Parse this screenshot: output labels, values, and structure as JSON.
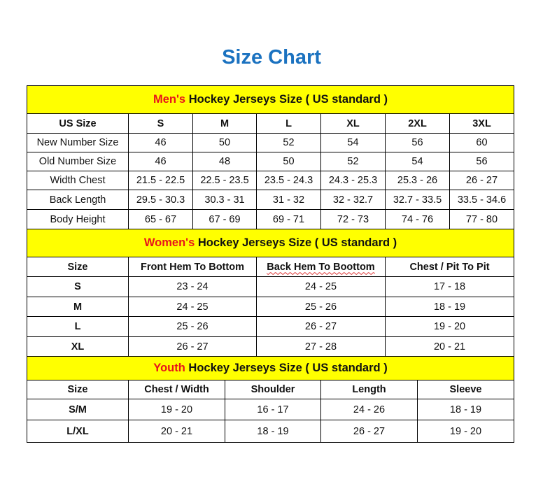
{
  "title": "Size Chart",
  "colors": {
    "title": "#1b72c0",
    "banner_bg": "#ffff00",
    "banner_accent": "#e8141b"
  },
  "mens": {
    "banner_accent": "Men's",
    "banner_rest": " Hockey Jerseys Size ( US standard )",
    "headers": [
      "US Size",
      "S",
      "M",
      "L",
      "XL",
      "2XL",
      "3XL"
    ],
    "rows": [
      [
        "New Number Size",
        "46",
        "50",
        "52",
        "54",
        "56",
        "60"
      ],
      [
        "Old Number Size",
        "46",
        "48",
        "50",
        "52",
        "54",
        "56"
      ],
      [
        "Width Chest",
        "21.5 - 22.5",
        "22.5 - 23.5",
        "23.5 - 24.3",
        "24.3 - 25.3",
        "25.3 - 26",
        "26 - 27"
      ],
      [
        "Back Length",
        "29.5 - 30.3",
        "30.3 - 31",
        "31 - 32",
        "32 - 32.7",
        "32.7 - 33.5",
        "33.5 - 34.6"
      ],
      [
        "Body Height",
        "65 - 67",
        "67 - 69",
        "69 - 71",
        "72 - 73",
        "74 - 76",
        "77 - 80"
      ]
    ]
  },
  "womens": {
    "banner_accent": "Women's",
    "banner_rest": " Hockey Jerseys Size ( US standard )",
    "headers": [
      "Size",
      "Front Hem To Bottom",
      "Back Hem To Boottom",
      "Chest / Pit To Pit"
    ],
    "rows": [
      [
        "S",
        "23 - 24",
        "24 - 25",
        "17 - 18"
      ],
      [
        "M",
        "24 - 25",
        "25 - 26",
        "18 - 19"
      ],
      [
        "L",
        "25 - 26",
        "26 - 27",
        "19 - 20"
      ],
      [
        "XL",
        "26 - 27",
        "27 - 28",
        "20 - 21"
      ]
    ]
  },
  "youth": {
    "banner_accent": "Youth",
    "banner_rest": " Hockey Jerseys Size ( US standard )",
    "headers": [
      "Size",
      "Chest / Width",
      "Shoulder",
      "Length",
      "Sleeve"
    ],
    "rows": [
      [
        "S/M",
        "19 - 20",
        "16 - 17",
        "24 - 26",
        "18 - 19"
      ],
      [
        "L/XL",
        "20 - 21",
        "18 - 19",
        "26 - 27",
        "19 - 20"
      ]
    ]
  }
}
